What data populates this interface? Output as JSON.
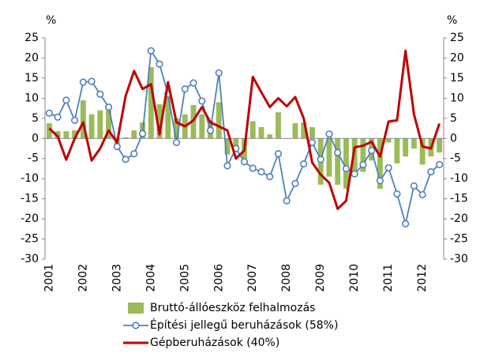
{
  "chart_data": {
    "type": "bar_line",
    "y_label": "%",
    "y2_label": "%",
    "categories": [
      "2001",
      null,
      null,
      null,
      "2002",
      null,
      null,
      null,
      "2003",
      null,
      null,
      null,
      "2004",
      null,
      null,
      null,
      "2005",
      null,
      null,
      null,
      "2006",
      null,
      null,
      null,
      "2007",
      null,
      null,
      null,
      "2008",
      null,
      null,
      null,
      "2009",
      null,
      null,
      null,
      "2010",
      null,
      null,
      null,
      "2011",
      null,
      null,
      null,
      "2012",
      null,
      null
    ],
    "series": [
      {
        "name": "Bruttó-állóeszköz felhalmozás",
        "type": "bar",
        "color": "#9bbb59",
        "values": [
          3.8,
          1.8,
          1.8,
          2,
          9.5,
          6,
          7,
          7,
          -1.5,
          0.3,
          2,
          4,
          17.7,
          8.5,
          10.5,
          5,
          6,
          8.3,
          6,
          4.5,
          9,
          -4,
          -3,
          -5.5,
          4.3,
          2.8,
          1,
          6.5,
          0,
          3.8,
          4,
          2.8,
          -11.5,
          -9.5,
          -11.5,
          -12.5,
          -9,
          -8.3,
          -5.5,
          -12.5,
          -1,
          -6.2,
          -4.5,
          -2.5,
          -6.5,
          -4.5,
          -3.5
        ]
      },
      {
        "name": "Építési jellegű beruházások (58%)",
        "type": "line",
        "marker": true,
        "color": "#4f81bd",
        "values": [
          6.3,
          5.3,
          9.5,
          4.5,
          14,
          14.2,
          11,
          7.8,
          -2,
          -5.2,
          -3.8,
          1.2,
          21.8,
          18.5,
          11,
          -1,
          12.3,
          13.8,
          9.3,
          2,
          16.3,
          -6.8,
          -2.5,
          -5.8,
          -7.4,
          -8.3,
          -9.5,
          -3.8,
          -15.5,
          -11.2,
          -6.3,
          -1,
          -5.2,
          1.1,
          -3.5,
          -7.5,
          -8.8,
          -6.5,
          -3,
          -10.5,
          -7.3,
          -13.8,
          -21.2,
          -11.8,
          -14,
          -8.3,
          -6.5
        ]
      },
      {
        "name": "Gépberuházások (40%)",
        "type": "line",
        "marker": false,
        "color": "#c00000",
        "values": [
          2.5,
          0.5,
          -5.3,
          0,
          4,
          -5.5,
          -2.5,
          2,
          -1,
          10.5,
          16.8,
          12.3,
          13.5,
          1,
          14,
          4,
          3,
          4.5,
          7.8,
          4,
          3,
          2,
          -5,
          -3,
          15.3,
          11.5,
          7.8,
          10,
          8,
          10.3,
          5,
          -6,
          -9,
          -11,
          -17.5,
          -15.5,
          -2.2,
          -1.8,
          -0.8,
          -4.5,
          4.2,
          4.5,
          21.8,
          6,
          -2,
          -2.5,
          3.7
        ]
      }
    ],
    "ylim": [
      -30,
      25
    ],
    "yticks": [
      -30,
      -25,
      -20,
      -15,
      -10,
      -5,
      0,
      5,
      10,
      15,
      20,
      25
    ],
    "y2lim": [
      -30,
      25
    ],
    "y2ticks": [
      -30,
      -25,
      -20,
      -15,
      -10,
      -5,
      0,
      5,
      10,
      15,
      20,
      25
    ],
    "grid": false
  }
}
